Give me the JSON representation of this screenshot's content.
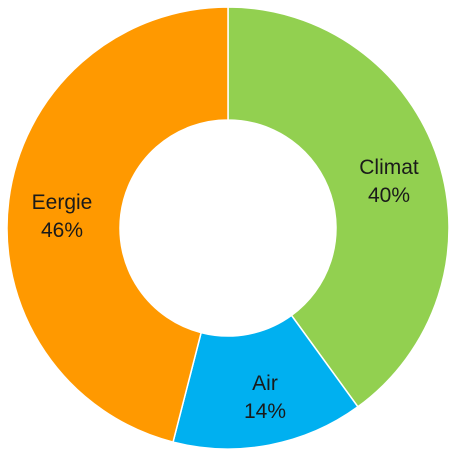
{
  "chart_data": {
    "type": "pie",
    "variant": "donut",
    "title": "",
    "categories": [
      "Climat",
      "Air",
      "Eergie"
    ],
    "values": [
      40,
      14,
      46
    ],
    "value_labels": [
      "40%",
      "14%",
      "46%"
    ],
    "colors": [
      "#92d050",
      "#00b0f0",
      "#ff9900"
    ],
    "start_angle_deg": 0,
    "direction": "clockwise",
    "legend": "none"
  }
}
